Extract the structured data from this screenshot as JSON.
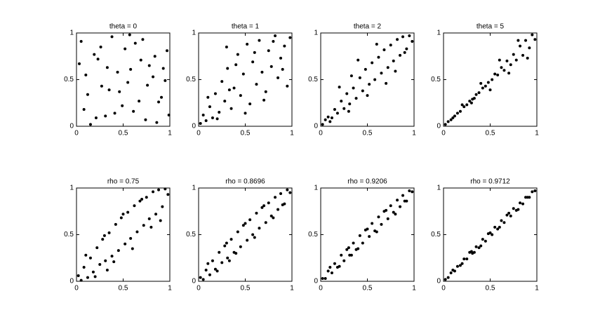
{
  "chart_data": [
    {
      "type": "scatter",
      "title": "theta = 0",
      "color": "#000000",
      "xlim": [
        0,
        1
      ],
      "ylim": [
        0,
        1
      ],
      "xticks": [
        0,
        0.5,
        1
      ],
      "yticks": [
        0,
        0.5,
        1
      ],
      "x": [
        0.05,
        0.12,
        0.23,
        0.31,
        0.44,
        0.52,
        0.67,
        0.78,
        0.86,
        0.95,
        0.08,
        0.19,
        0.27,
        0.38,
        0.49,
        0.58,
        0.63,
        0.74,
        0.82,
        0.91,
        0.03,
        0.15,
        0.26,
        0.35,
        0.41,
        0.55,
        0.69,
        0.71,
        0.88,
        0.97,
        0.1,
        0.21,
        0.33,
        0.46,
        0.57,
        0.61,
        0.76,
        0.84,
        0.93,
        0.99
      ],
      "y": [
        0.91,
        0.34,
        0.72,
        0.11,
        0.58,
        0.83,
        0.27,
        0.65,
        0.04,
        0.49,
        0.18,
        0.77,
        0.43,
        0.96,
        0.22,
        0.61,
        0.89,
        0.07,
        0.53,
        0.31,
        0.67,
        0.02,
        0.85,
        0.39,
        0.14,
        0.47,
        0.71,
        0.93,
        0.26,
        0.81,
        0.55,
        0.09,
        0.63,
        0.37,
        0.98,
        0.16,
        0.44,
        0.75,
        0.62,
        0.12
      ]
    },
    {
      "type": "scatter",
      "title": "theta = 1",
      "color": "#000000",
      "xlim": [
        0,
        1
      ],
      "ylim": [
        0,
        1
      ],
      "xticks": [
        0,
        0.5,
        1
      ],
      "yticks": [
        0,
        0.5,
        1
      ],
      "x": [
        0.02,
        0.05,
        0.08,
        0.12,
        0.15,
        0.18,
        0.22,
        0.25,
        0.28,
        0.31,
        0.35,
        0.38,
        0.42,
        0.45,
        0.48,
        0.52,
        0.55,
        0.58,
        0.62,
        0.65,
        0.68,
        0.72,
        0.75,
        0.78,
        0.82,
        0.85,
        0.88,
        0.92,
        0.95,
        0.98,
        0.1,
        0.2,
        0.3,
        0.4,
        0.5,
        0.6,
        0.7,
        0.8,
        0.9,
        0.33
      ],
      "y": [
        0.03,
        0.12,
        0.06,
        0.21,
        0.09,
        0.35,
        0.15,
        0.48,
        0.27,
        0.62,
        0.19,
        0.41,
        0.77,
        0.33,
        0.56,
        0.88,
        0.24,
        0.69,
        0.45,
        0.92,
        0.58,
        0.37,
        0.81,
        0.64,
        0.97,
        0.52,
        0.73,
        0.86,
        0.43,
        0.95,
        0.31,
        0.08,
        0.85,
        0.66,
        0.14,
        0.79,
        0.28,
        0.91,
        0.61,
        0.39
      ]
    },
    {
      "type": "scatter",
      "title": "theta = 2",
      "color": "#000000",
      "xlim": [
        0,
        1
      ],
      "ylim": [
        0,
        1
      ],
      "xticks": [
        0,
        0.5,
        1
      ],
      "yticks": [
        0,
        0.5,
        1
      ],
      "x": [
        0.02,
        0.05,
        0.08,
        0.12,
        0.15,
        0.18,
        0.22,
        0.25,
        0.28,
        0.31,
        0.35,
        0.38,
        0.42,
        0.45,
        0.48,
        0.52,
        0.55,
        0.58,
        0.62,
        0.65,
        0.68,
        0.72,
        0.75,
        0.78,
        0.82,
        0.85,
        0.88,
        0.92,
        0.95,
        0.98,
        0.1,
        0.2,
        0.3,
        0.4,
        0.5,
        0.6,
        0.7,
        0.8,
        0.9,
        0.33
      ],
      "y": [
        0.02,
        0.07,
        0.1,
        0.09,
        0.18,
        0.14,
        0.27,
        0.19,
        0.35,
        0.24,
        0.41,
        0.3,
        0.52,
        0.38,
        0.61,
        0.45,
        0.68,
        0.5,
        0.74,
        0.57,
        0.82,
        0.63,
        0.87,
        0.7,
        0.93,
        0.76,
        0.96,
        0.83,
        0.97,
        0.91,
        0.05,
        0.42,
        0.16,
        0.71,
        0.33,
        0.88,
        0.46,
        0.59,
        0.79,
        0.54
      ]
    },
    {
      "type": "scatter",
      "title": "theta = 5",
      "color": "#000000",
      "xlim": [
        0,
        1
      ],
      "ylim": [
        0,
        1
      ],
      "xticks": [
        0,
        0.5,
        1
      ],
      "yticks": [
        0,
        0.5,
        1
      ],
      "x": [
        0.02,
        0.05,
        0.08,
        0.12,
        0.15,
        0.18,
        0.22,
        0.25,
        0.28,
        0.31,
        0.35,
        0.38,
        0.42,
        0.45,
        0.48,
        0.52,
        0.55,
        0.58,
        0.62,
        0.65,
        0.68,
        0.72,
        0.75,
        0.78,
        0.82,
        0.85,
        0.88,
        0.92,
        0.95,
        0.98,
        0.1,
        0.2,
        0.3,
        0.4,
        0.5,
        0.6,
        0.7,
        0.8,
        0.9,
        0.33
      ],
      "y": [
        0.02,
        0.05,
        0.07,
        0.11,
        0.14,
        0.16,
        0.21,
        0.23,
        0.27,
        0.29,
        0.34,
        0.36,
        0.41,
        0.43,
        0.47,
        0.5,
        0.56,
        0.55,
        0.63,
        0.6,
        0.7,
        0.66,
        0.77,
        0.71,
        0.86,
        0.76,
        0.92,
        0.84,
        0.98,
        0.93,
        0.09,
        0.23,
        0.25,
        0.46,
        0.39,
        0.71,
        0.57,
        0.92,
        0.73,
        0.3
      ]
    },
    {
      "type": "scatter",
      "title": "rho = 0.75",
      "color": "#000000",
      "xlim": [
        0,
        1
      ],
      "ylim": [
        0,
        1
      ],
      "xticks": [
        0,
        0.5,
        1
      ],
      "yticks": [
        0,
        0.5,
        1
      ],
      "x": [
        0.02,
        0.05,
        0.08,
        0.12,
        0.15,
        0.18,
        0.22,
        0.25,
        0.28,
        0.31,
        0.35,
        0.38,
        0.42,
        0.45,
        0.48,
        0.52,
        0.55,
        0.58,
        0.62,
        0.65,
        0.68,
        0.72,
        0.75,
        0.78,
        0.82,
        0.85,
        0.88,
        0.92,
        0.95,
        0.98,
        0.1,
        0.2,
        0.3,
        0.4,
        0.5,
        0.6,
        0.7,
        0.8,
        0.9,
        0.33
      ],
      "y": [
        0.06,
        0.01,
        0.15,
        0.04,
        0.25,
        0.1,
        0.36,
        0.18,
        0.45,
        0.22,
        0.52,
        0.27,
        0.61,
        0.33,
        0.68,
        0.4,
        0.74,
        0.46,
        0.81,
        0.53,
        0.86,
        0.6,
        0.9,
        0.67,
        0.96,
        0.72,
        0.98,
        0.8,
        0.99,
        0.93,
        0.28,
        0.05,
        0.49,
        0.21,
        0.72,
        0.35,
        0.88,
        0.58,
        0.65,
        0.12
      ]
    },
    {
      "type": "scatter",
      "title": "rho = 0.8696",
      "color": "#000000",
      "xlim": [
        0,
        1
      ],
      "ylim": [
        0,
        1
      ],
      "xticks": [
        0,
        0.5,
        1
      ],
      "yticks": [
        0,
        0.5,
        1
      ],
      "x": [
        0.02,
        0.05,
        0.08,
        0.12,
        0.15,
        0.18,
        0.22,
        0.25,
        0.28,
        0.31,
        0.35,
        0.38,
        0.42,
        0.45,
        0.48,
        0.52,
        0.55,
        0.58,
        0.62,
        0.65,
        0.68,
        0.72,
        0.75,
        0.78,
        0.82,
        0.85,
        0.88,
        0.92,
        0.95,
        0.98,
        0.1,
        0.2,
        0.3,
        0.4,
        0.5,
        0.6,
        0.7,
        0.8,
        0.9,
        0.33
      ],
      "y": [
        0.04,
        0.02,
        0.12,
        0.07,
        0.22,
        0.13,
        0.31,
        0.2,
        0.38,
        0.25,
        0.45,
        0.31,
        0.53,
        0.37,
        0.6,
        0.44,
        0.66,
        0.5,
        0.73,
        0.57,
        0.79,
        0.63,
        0.84,
        0.7,
        0.9,
        0.77,
        0.94,
        0.83,
        0.98,
        0.95,
        0.19,
        0.11,
        0.41,
        0.3,
        0.62,
        0.47,
        0.81,
        0.68,
        0.82,
        0.22
      ]
    },
    {
      "type": "scatter",
      "title": "rho = 0.9206",
      "color": "#000000",
      "xlim": [
        0,
        1
      ],
      "ylim": [
        0,
        1
      ],
      "xticks": [
        0,
        0.5,
        1
      ],
      "yticks": [
        0,
        0.5,
        1
      ],
      "x": [
        0.02,
        0.05,
        0.08,
        0.12,
        0.15,
        0.18,
        0.22,
        0.25,
        0.28,
        0.31,
        0.35,
        0.38,
        0.42,
        0.45,
        0.48,
        0.52,
        0.55,
        0.58,
        0.62,
        0.65,
        0.68,
        0.72,
        0.75,
        0.78,
        0.82,
        0.85,
        0.88,
        0.92,
        0.95,
        0.98,
        0.1,
        0.2,
        0.3,
        0.4,
        0.5,
        0.6,
        0.7,
        0.8,
        0.9,
        0.33
      ],
      "y": [
        0.03,
        0.03,
        0.11,
        0.09,
        0.19,
        0.15,
        0.28,
        0.22,
        0.34,
        0.28,
        0.41,
        0.34,
        0.49,
        0.41,
        0.55,
        0.48,
        0.62,
        0.54,
        0.69,
        0.61,
        0.75,
        0.67,
        0.81,
        0.74,
        0.87,
        0.8,
        0.92,
        0.86,
        0.97,
        0.96,
        0.15,
        0.16,
        0.36,
        0.35,
        0.56,
        0.53,
        0.76,
        0.72,
        0.86,
        0.28
      ]
    },
    {
      "type": "scatter",
      "title": "rho = 0.9712",
      "color": "#000000",
      "xlim": [
        0,
        1
      ],
      "ylim": [
        0,
        1
      ],
      "xticks": [
        0,
        0.5,
        1
      ],
      "yticks": [
        0,
        0.5,
        1
      ],
      "x": [
        0.02,
        0.05,
        0.08,
        0.12,
        0.15,
        0.18,
        0.22,
        0.25,
        0.28,
        0.31,
        0.35,
        0.38,
        0.42,
        0.45,
        0.48,
        0.52,
        0.55,
        0.58,
        0.62,
        0.65,
        0.68,
        0.72,
        0.75,
        0.78,
        0.82,
        0.85,
        0.88,
        0.92,
        0.95,
        0.98,
        0.1,
        0.2,
        0.3,
        0.4,
        0.5,
        0.6,
        0.7,
        0.8,
        0.9,
        0.33
      ],
      "y": [
        0.02,
        0.04,
        0.09,
        0.11,
        0.16,
        0.17,
        0.24,
        0.24,
        0.31,
        0.3,
        0.37,
        0.36,
        0.45,
        0.43,
        0.51,
        0.5,
        0.58,
        0.56,
        0.65,
        0.63,
        0.71,
        0.7,
        0.78,
        0.76,
        0.84,
        0.83,
        0.9,
        0.9,
        0.96,
        0.97,
        0.12,
        0.19,
        0.32,
        0.38,
        0.52,
        0.58,
        0.73,
        0.77,
        0.9,
        0.31
      ]
    }
  ]
}
